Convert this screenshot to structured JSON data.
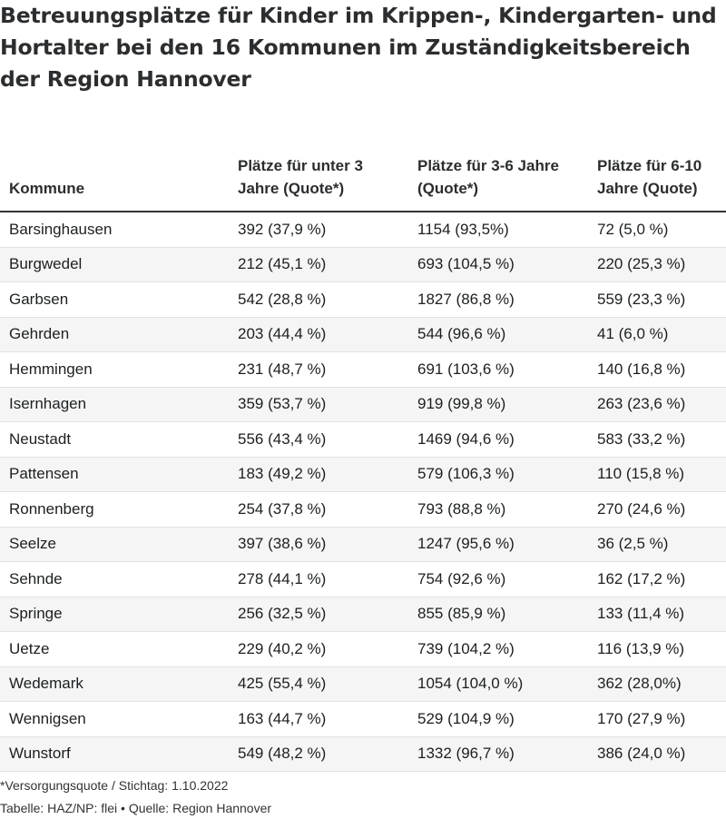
{
  "chart_data": {
    "type": "table",
    "title": "Betreuungsplätze für Kinder im Krippen-, Kindergarten- und Hortalter bei den 16 Kommunen im Zuständigkeitsbereich der Region Hannover",
    "columns": [
      "Kommune",
      "Plätze für unter 3 Jahre (Quote*)",
      "Plätze für 3-6 Jahre (Quote*)",
      "Plätze für 6-10 Jahre (Quote)"
    ],
    "rows": [
      [
        "Barsinghausen",
        "392 (37,9 %)",
        "1154 (93,5%)",
        "72 (5,0 %)"
      ],
      [
        "Burgwedel",
        "212 (45,1 %)",
        "693 (104,5 %)",
        "220 (25,3 %)"
      ],
      [
        "Garbsen",
        "542 (28,8 %)",
        "1827 (86,8 %)",
        "559 (23,3 %)"
      ],
      [
        "Gehrden",
        "203 (44,4 %)",
        "544 (96,6 %)",
        "41 (6,0 %)"
      ],
      [
        "Hemmingen",
        "231 (48,7 %)",
        "691 (103,6 %)",
        "140 (16,8 %)"
      ],
      [
        "Isernhagen",
        "359 (53,7 %)",
        "919 (99,8 %)",
        "263 (23,6 %)"
      ],
      [
        "Neustadt",
        "556 (43,4 %)",
        "1469 (94,6 %)",
        "583 (33,2 %)"
      ],
      [
        "Pattensen",
        "183 (49,2 %)",
        "579 (106,3 %)",
        "110 (15,8 %)"
      ],
      [
        "Ronnenberg",
        "254 (37,8 %)",
        "793 (88,8 %)",
        "270 (24,6 %)"
      ],
      [
        "Seelze",
        "397 (38,6 %)",
        "1247 (95,6 %)",
        "36 (2,5 %)"
      ],
      [
        "Sehnde",
        "278 (44,1 %)",
        "754 (92,6 %)",
        "162 (17,2 %)"
      ],
      [
        "Springe",
        "256 (32,5 %)",
        "855 (85,9 %)",
        "133 (11,4 %)"
      ],
      [
        "Uetze",
        "229 (40,2 %)",
        "739 (104,2 %)",
        "116 (13,9 %)"
      ],
      [
        "Wedemark",
        "425 (55,4 %)",
        "1054 (104,0 %)",
        "362 (28,0%)"
      ],
      [
        "Wennigsen",
        "163 (44,7 %)",
        "529 (104,9 %)",
        "170 (27,9 %)"
      ],
      [
        "Wunstorf",
        "549 (48,2 %)",
        "1332 (96,7 %)",
        "386 (24,0 %)"
      ]
    ],
    "footnote": "*Versorgungsquote / Stichtag: 1.10.2022",
    "source": "Tabelle: HAZ/NP: flei • Quelle: Region Hannover"
  },
  "colors": {
    "text": "#1c1f21",
    "header_rule": "#333333",
    "row_stripe": "#f5f5f5",
    "row_divider": "#e2e2e2"
  }
}
